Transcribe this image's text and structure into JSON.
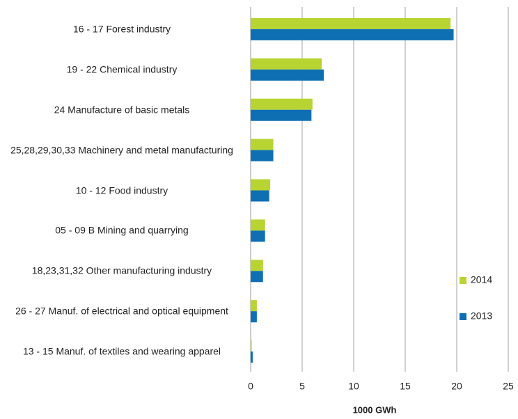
{
  "chart_data": {
    "type": "barh",
    "categories": [
      "16 - 17 Forest industry",
      "19 - 22 Chemical industry",
      "24 Manufacture of basic metals",
      "25,28,29,30,33 Machinery and metal manufacturing",
      "10 - 12 Food industry",
      "05 - 09 B Mining and quarrying",
      "18,23,31,32 Other manufacturing industry",
      "26 - 27 Manuf. of electrical and optical equipment",
      "13 - 15 Manuf. of textiles and wearing apparel"
    ],
    "series": [
      {
        "name": "2014",
        "color": "#b8d432",
        "values": [
          19.4,
          6.9,
          6.0,
          2.2,
          1.9,
          1.4,
          1.2,
          0.6,
          0.1
        ]
      },
      {
        "name": "2013",
        "color": "#0f6fb3",
        "values": [
          19.7,
          7.1,
          5.9,
          2.2,
          1.8,
          1.4,
          1.2,
          0.6,
          0.2
        ]
      }
    ],
    "xlabel": "1000 GWh",
    "xlim": [
      0,
      25
    ],
    "xticks": [
      0,
      5,
      10,
      15,
      20,
      25
    ],
    "grid": true,
    "legend": "right"
  }
}
